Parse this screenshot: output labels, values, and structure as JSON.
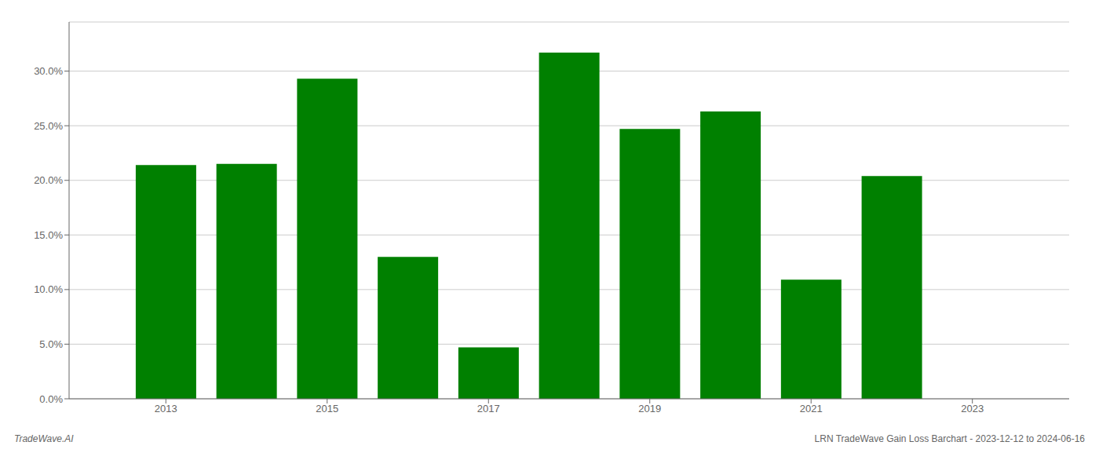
{
  "chart_data": {
    "type": "bar",
    "x": [
      2013,
      2014,
      2015,
      2016,
      2017,
      2018,
      2019,
      2020,
      2021,
      2022
    ],
    "values": [
      0.214,
      0.215,
      0.293,
      0.13,
      0.047,
      0.317,
      0.247,
      0.263,
      0.109,
      0.204
    ],
    "color": "#008000",
    "xlim": [
      2011.8,
      2024.2
    ],
    "xticks": [
      2013,
      2015,
      2017,
      2019,
      2021,
      2023
    ],
    "ylim": [
      0,
      0.345
    ],
    "yticks": [
      {
        "value": 0.0,
        "label": "0.0%"
      },
      {
        "value": 0.05,
        "label": "5.0%"
      },
      {
        "value": 0.1,
        "label": "10.0%"
      },
      {
        "value": 0.15,
        "label": "15.0%"
      },
      {
        "value": 0.2,
        "label": "20.0%"
      },
      {
        "value": 0.25,
        "label": "25.0%"
      },
      {
        "value": 0.3,
        "label": "30.0%"
      }
    ],
    "grid": true,
    "annotations": [
      "TradeWave.AI",
      "LRN TradeWave Gain Loss Barchart - 2023-12-12 to 2024-06-16"
    ]
  }
}
